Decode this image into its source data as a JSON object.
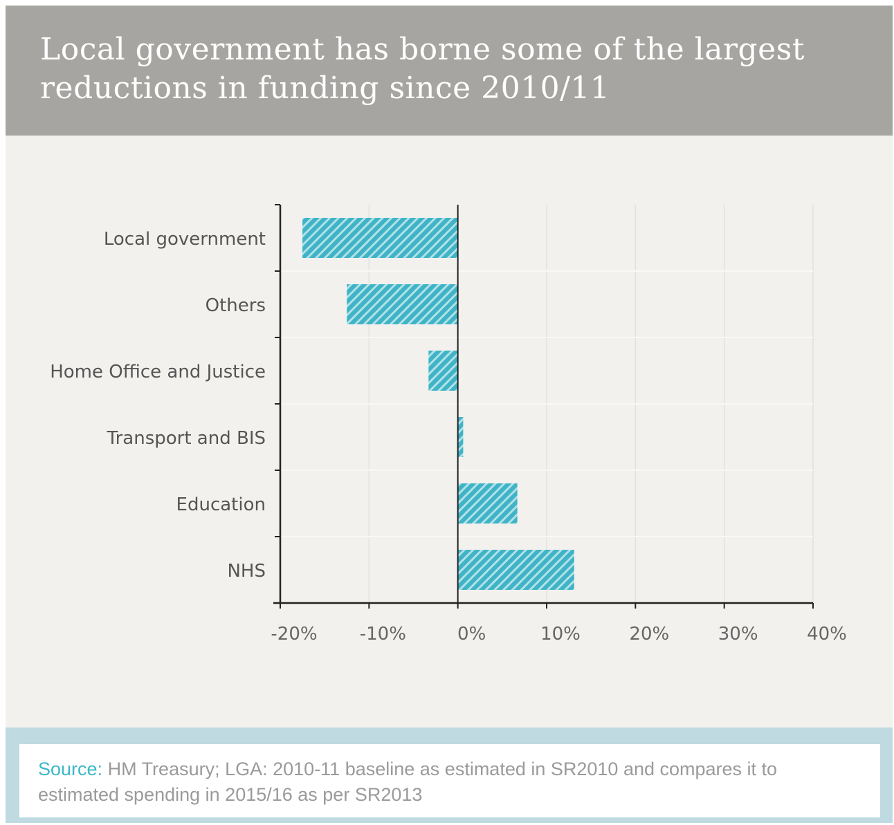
{
  "title": "Local government has borne some of the largest reductions in funding since 2010/11",
  "source": {
    "label": "Source:",
    "text": " HM Treasury; LGA: 2010-11 baseline as estimated in SR2010 and compares it to estimated spending in 2015/16 as per SR2013"
  },
  "colors": {
    "bar": "#3fb4c6",
    "header_bg": "#a7a5a1",
    "footer_bg": "#bfdbe1",
    "source_label": "#3bb7c8"
  },
  "chart_data": {
    "type": "bar",
    "orientation": "horizontal",
    "title": "Local government has borne some of the largest reductions in funding since 2010/11",
    "xlabel": "",
    "ylabel": "",
    "categories": [
      "Local government",
      "Others",
      "Home Office and Justice",
      "Transport and BIS",
      "Education",
      "NHS"
    ],
    "values": [
      -17.5,
      -12.5,
      -3.3,
      0.6,
      6.7,
      13.1
    ],
    "xlim": [
      -20,
      40
    ],
    "xticks": [
      "-20%",
      "-10%",
      "0%",
      "10%",
      "20%",
      "30%",
      "40%"
    ],
    "xtick_values": [
      -20,
      -10,
      0,
      10,
      20,
      30,
      40
    ],
    "grid": true,
    "bar_pattern": "hatched"
  }
}
